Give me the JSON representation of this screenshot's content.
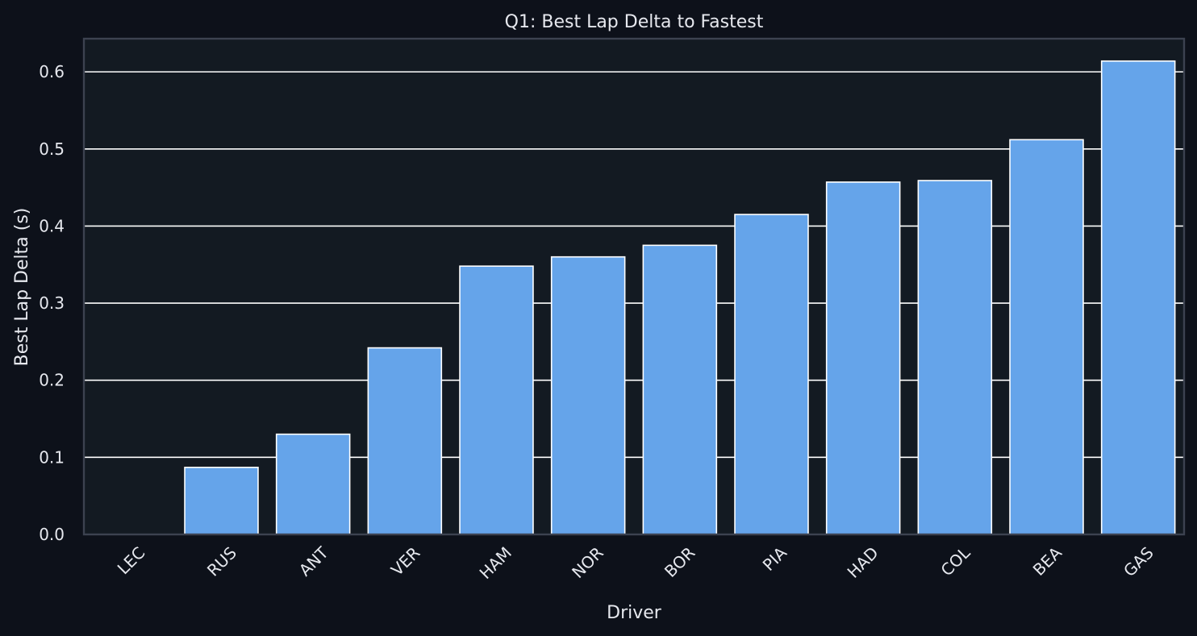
{
  "chart_data": {
    "type": "bar",
    "title": "Q1: Best Lap Delta to Fastest",
    "xlabel": "Driver",
    "ylabel": "Best Lap Delta (s)",
    "categories": [
      "LEC",
      "RUS",
      "ANT",
      "VER",
      "HAM",
      "NOR",
      "BOR",
      "PIA",
      "HAD",
      "COL",
      "BEA",
      "GAS"
    ],
    "values": [
      0.0,
      0.087,
      0.13,
      0.242,
      0.348,
      0.36,
      0.375,
      0.415,
      0.457,
      0.459,
      0.512,
      0.614
    ],
    "ylim": [
      0,
      0.643
    ],
    "yticks": [
      0.0,
      0.1,
      0.2,
      0.3,
      0.4,
      0.5,
      0.6
    ],
    "ytick_labels": [
      "0.0",
      "0.1",
      "0.2",
      "0.3",
      "0.4",
      "0.5",
      "0.6"
    ],
    "grid": true,
    "legend": "none",
    "colors": {
      "background": "#0d111a",
      "plot_background": "#131a22",
      "bar_fill": "#65a4ea",
      "bar_edge": "#ffffff",
      "grid": "#ffffff",
      "axes_edge": "#3c4250",
      "text": "#e6e8ee"
    }
  }
}
